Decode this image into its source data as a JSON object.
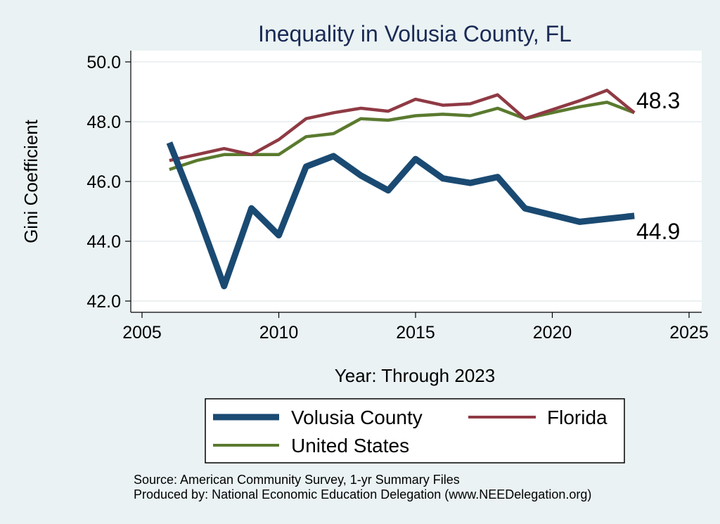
{
  "chart_data": {
    "type": "line",
    "title": "Inequality in Volusia County, FL",
    "xlabel": "Year: Through 2023",
    "ylabel": "Gini Coefficient",
    "xlim": [
      2005,
      2025
    ],
    "ylim": [
      42,
      50
    ],
    "xticks": [
      2005,
      2010,
      2015,
      2020,
      2025
    ],
    "yticks": [
      "42.0",
      "44.0",
      "46.0",
      "48.0",
      "50.0"
    ],
    "grid": true,
    "legend_position": "bottom",
    "series": [
      {
        "name": "Volusia County",
        "color": "#1a4a72",
        "x": [
          2006,
          2007,
          2008,
          2009,
          2010,
          2011,
          2012,
          2013,
          2014,
          2015,
          2016,
          2017,
          2018,
          2019,
          2021,
          2022,
          2023
        ],
        "values": [
          47.3,
          45.0,
          42.5,
          45.1,
          44.2,
          46.5,
          46.85,
          46.2,
          45.7,
          46.75,
          46.1,
          45.95,
          46.15,
          45.1,
          44.65,
          44.75,
          44.85
        ]
      },
      {
        "name": "Florida",
        "color": "#8f3a44",
        "x": [
          2006,
          2007,
          2008,
          2009,
          2010,
          2011,
          2012,
          2013,
          2014,
          2015,
          2016,
          2017,
          2018,
          2019,
          2021,
          2022,
          2023
        ],
        "values": [
          46.7,
          46.9,
          47.1,
          46.9,
          47.4,
          48.1,
          48.3,
          48.45,
          48.35,
          48.75,
          48.55,
          48.6,
          48.9,
          48.1,
          48.7,
          49.05,
          48.3
        ]
      },
      {
        "name": "United States",
        "color": "#5a7a2e",
        "x": [
          2006,
          2007,
          2008,
          2009,
          2010,
          2011,
          2012,
          2013,
          2014,
          2015,
          2016,
          2017,
          2018,
          2019,
          2021,
          2022,
          2023
        ],
        "values": [
          46.4,
          46.7,
          46.9,
          46.9,
          46.9,
          47.5,
          47.6,
          48.1,
          48.05,
          48.2,
          48.25,
          48.2,
          48.45,
          48.1,
          48.5,
          48.65,
          48.3
        ]
      }
    ],
    "end_labels": [
      "48.3",
      "44.9"
    ],
    "notes": [
      "Source: American Community Survey, 1-yr Summary Files",
      "Produced by: National Economic Education Delegation (www.NEEDelegation.org)"
    ]
  }
}
